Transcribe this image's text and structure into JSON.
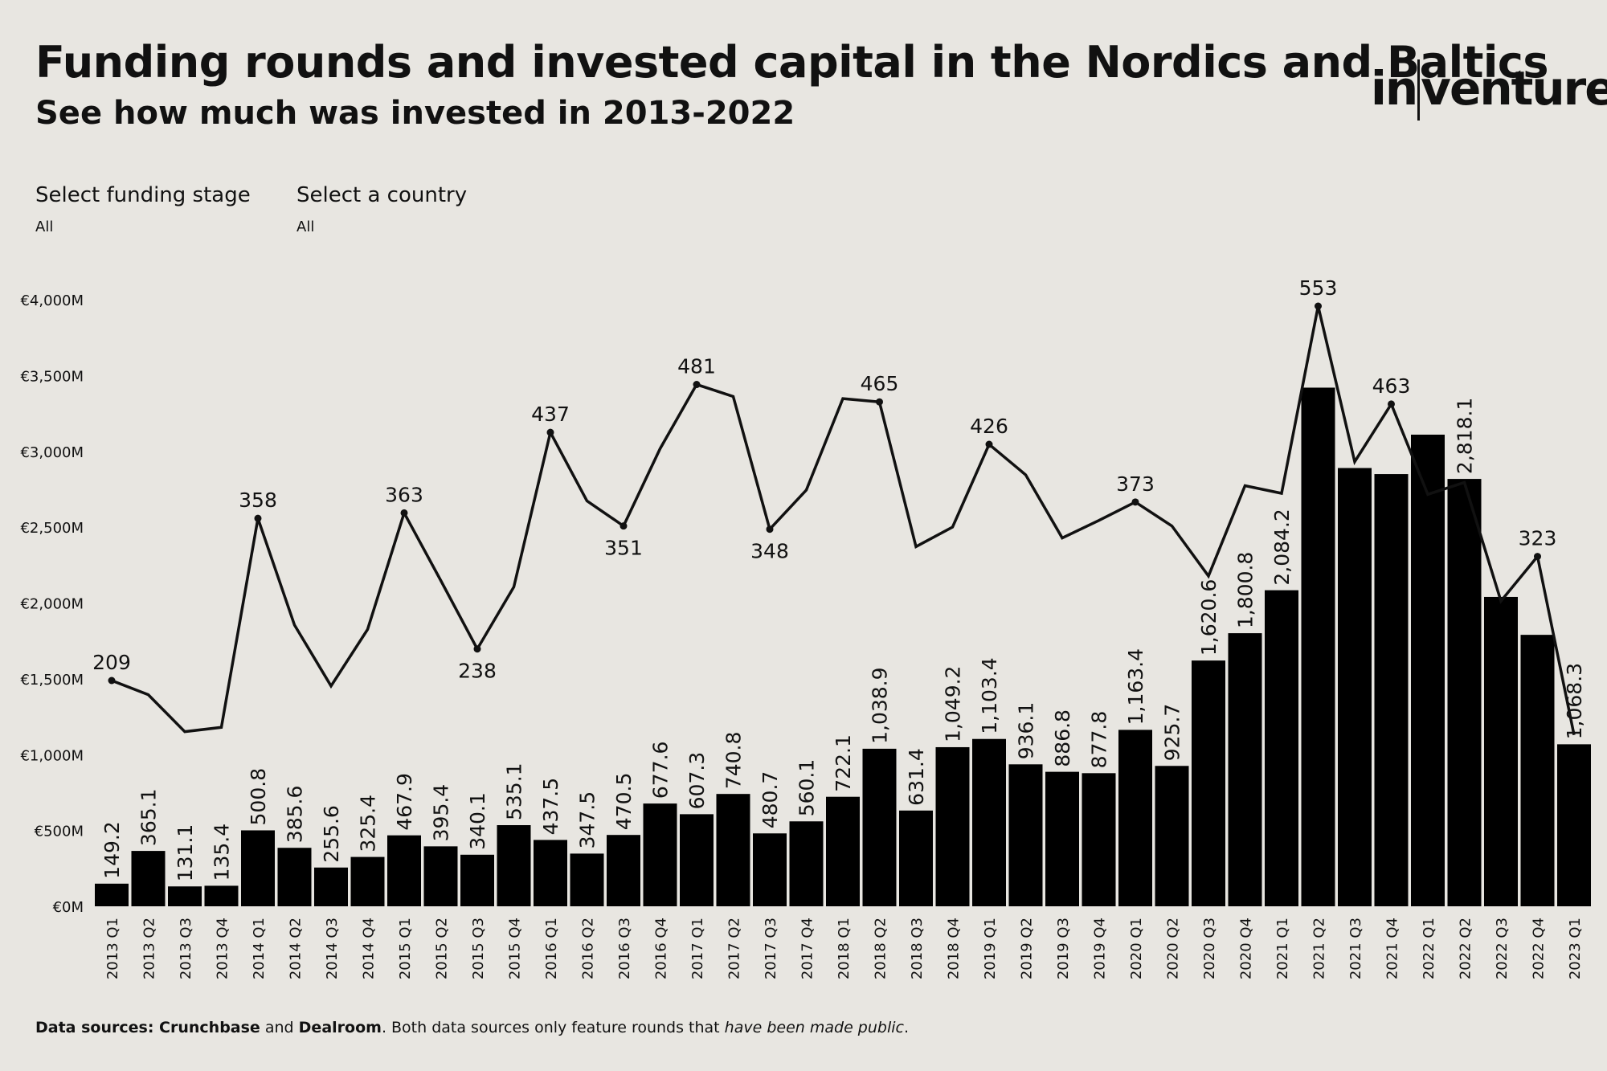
{
  "title": "Funding rounds and invested capital in the Nordics and Baltics",
  "subtitle": "See how much was invested in 2013-2022",
  "logo": {
    "left": "in",
    "right": "venture"
  },
  "filters": [
    {
      "label": "Select funding stage",
      "value": "All"
    },
    {
      "label": "Select a country",
      "value": "All"
    }
  ],
  "footer": {
    "prefix": "Data sources: ",
    "source1": "Crunchbase",
    "and": " and ",
    "source2": "Dealroom",
    "middle": ". Both data sources only feature rounds that ",
    "italic": "have been made public",
    "suffix": "."
  },
  "colors": {
    "background": "#e8e6e1",
    "bars": "#000000",
    "line": "#111111"
  },
  "chart_data": {
    "type": "bar",
    "title": "Funding rounds and invested capital in the Nordics and Baltics",
    "xlabel": "",
    "ylabel": "",
    "ylim": [
      0,
      4000
    ],
    "y_ticks": [
      0,
      500,
      1000,
      1500,
      2000,
      2500,
      3000,
      3500,
      4000
    ],
    "y_tick_labels": [
      "€0M",
      "€500M",
      "€1,000M",
      "€1,500M",
      "€2,000M",
      "€2,500M",
      "€3,000M",
      "€3,500M",
      "€4,000M"
    ],
    "categories": [
      "2013 Q1",
      "2013 Q2",
      "2013 Q3",
      "2013 Q4",
      "2014 Q1",
      "2014 Q2",
      "2014 Q3",
      "2014 Q4",
      "2015 Q1",
      "2015 Q2",
      "2015 Q3",
      "2015 Q4",
      "2016 Q1",
      "2016 Q2",
      "2016 Q3",
      "2016 Q4",
      "2017 Q1",
      "2017 Q2",
      "2017 Q3",
      "2017 Q4",
      "2018 Q1",
      "2018 Q2",
      "2018 Q3",
      "2018 Q4",
      "2019 Q1",
      "2019 Q2",
      "2019 Q3",
      "2019 Q4",
      "2020 Q1",
      "2020 Q2",
      "2020 Q3",
      "2020 Q4",
      "2021 Q1",
      "2021 Q2",
      "2021 Q3",
      "2021 Q4",
      "2022 Q1",
      "2022 Q2",
      "2022 Q3",
      "2022 Q4",
      "2023 Q1"
    ],
    "series": [
      {
        "name": "Invested capital (€M)",
        "type": "bar",
        "values": [
          149.2,
          365.1,
          131.1,
          135.4,
          500.8,
          385.6,
          255.6,
          325.4,
          467.9,
          395.4,
          340.1,
          535.1,
          437.5,
          347.5,
          470.5,
          677.6,
          607.3,
          740.8,
          480.7,
          560.1,
          722.1,
          1038.9,
          631.4,
          1049.2,
          1103.4,
          936.1,
          886.8,
          877.8,
          1163.4,
          925.7,
          1620.6,
          1800.8,
          2084.2,
          3420,
          2890,
          2850,
          3110,
          2818.1,
          2040,
          1790,
          1068.3
        ],
        "labels": [
          "149.2",
          "365.1",
          "131.1",
          "135.4",
          "500.8",
          "385.6",
          "255.6",
          "325.4",
          "467.9",
          "395.4",
          "340.1",
          "535.1",
          "437.5",
          "347.5",
          "470.5",
          "677.6",
          "607.3",
          "740.8",
          "480.7",
          "560.1",
          "722.1",
          "1,038.9",
          "631.4",
          "1,049.2",
          "1,103.4",
          "936.1",
          "886.8",
          "877.8",
          "1,163.4",
          "925.7",
          "1,620.6",
          "1,800.8",
          "2,084.2",
          "",
          "",
          "",
          "",
          "2,818.1",
          "",
          "",
          "1,068.3"
        ]
      },
      {
        "name": "Funding rounds",
        "type": "line",
        "values": [
          209,
          196,
          162,
          166,
          358,
          260,
          204,
          256,
          363,
          301,
          238,
          295,
          437,
          374,
          351,
          422,
          481,
          470,
          348,
          384,
          468,
          465,
          332,
          350,
          426,
          398,
          340,
          356,
          373,
          351,
          305,
          388,
          381,
          553,
          410,
          463,
          380,
          391,
          282,
          323,
          159
        ],
        "labels": [
          "209",
          "",
          "",
          "",
          "358",
          "",
          "",
          "",
          "363",
          "",
          "238",
          "",
          "437",
          "",
          "351",
          "",
          "481",
          "",
          "348",
          "",
          "",
          "465",
          "",
          "",
          "426",
          "",
          "",
          "",
          "373",
          "",
          "",
          "",
          "",
          "553",
          "",
          "463",
          "",
          "",
          "",
          "323",
          ""
        ]
      }
    ],
    "line_scale_note": "Funding round counts plotted on a secondary scale"
  }
}
